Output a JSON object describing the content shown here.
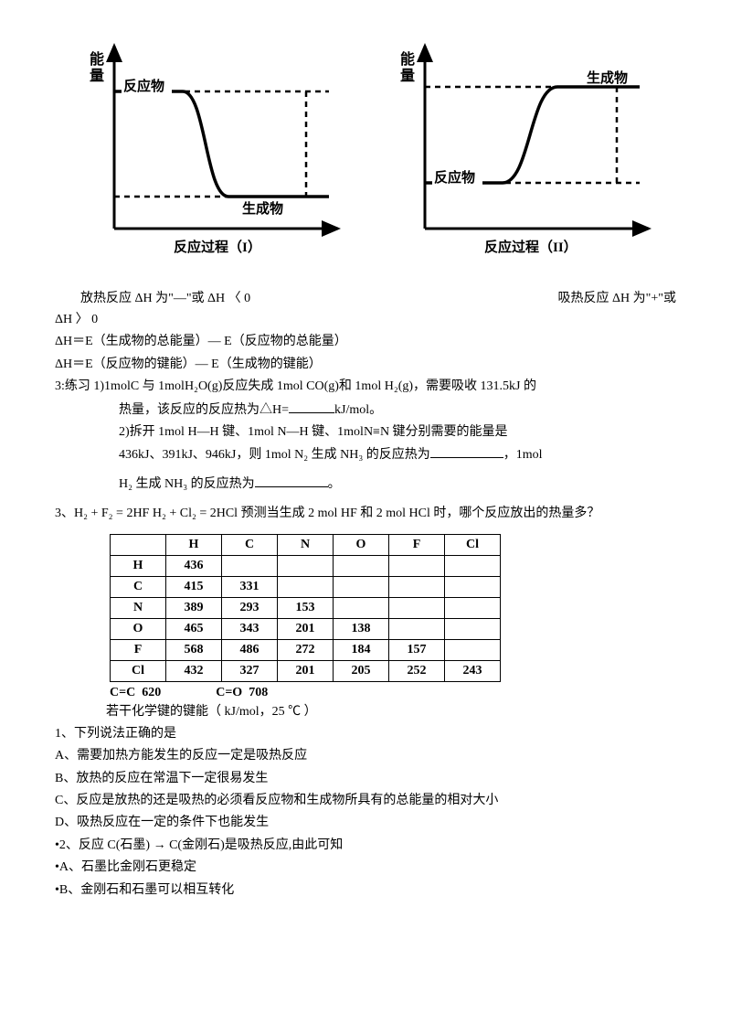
{
  "diagrams": {
    "ylabel": "能\n量",
    "xlabel1": "反应过程（I）",
    "xlabel2": "反应过程（II）",
    "reactant": "反应物",
    "product": "生成物",
    "stroke": "#000000",
    "strokeWidth": 2
  },
  "text": {
    "exo": "放热反应 ΔH 为\"—\"或 ΔH 〈 0",
    "endo": "吸热反应 ΔH 为\"+\"或",
    "endo2": "ΔH  〉 0",
    "eq1": "ΔH＝E（生成物的总能量）— E（反应物的总能量）",
    "eq2": "ΔH＝E（反应物的键能）— E（生成物的键能）",
    "ex3a": "3:练习 1)1molC 与 1molH₂O(g)反应失成 1mol CO(g)和 1mol H₂(g)，需要吸收 131.5kJ 的",
    "ex3b": "热量，该反应的反应热为△H=",
    "ex3b2": "kJ/mol。",
    "ex3c": "2)拆开   1mol   H—H 键、1mol   N—H 键、1molN≡N 键分别需要的能量是",
    "ex3d": "436kJ、391kJ、946kJ，则 1mol N₂ 生成 NH₃ 的反应热为",
    "ex3d2": "，1mol",
    "ex3e": "H₂ 生成 NH₃ 的反应热为",
    "ex3e2": "。",
    "q3": "3、H₂ + F₂ = 2HF  H₂ + Cl₂ = 2HCl 预测当生成 2 mol HF 和 2 mol HCl 时，哪个反应放出的热量多？",
    "tablecap": "若干化学键的键能（ kJ/mol，25  ℃ ）",
    "q1": "1、下列说法正确的是",
    "q1a": "A、需要加热方能发生的反应一定是吸热反应",
    "q1b": "B、放热的反应在常温下一定很易发生",
    "q1c": "C、反应是放热的还是吸热的必须看反应物和生成物所具有的总能量的相对大小",
    "q1d": "D、吸热反应在一定的条件下也能发生",
    "q2": "•2、反应 C(石墨) → C(金刚石)是吸热反应,由此可知",
    "q2a": "•A、石墨比金刚石更稳定",
    "q2b": "•B、金刚石和石墨可以相互转化"
  },
  "table": {
    "headers": [
      "",
      "H",
      "C",
      "N",
      "O",
      "F",
      "Cl"
    ],
    "rows": [
      [
        "H",
        "436",
        "",
        "",
        "",
        "",
        ""
      ],
      [
        "C",
        "415",
        "331",
        "",
        "",
        "",
        ""
      ],
      [
        "N",
        "389",
        "293",
        "153",
        "",
        "",
        ""
      ],
      [
        "O",
        "465",
        "343",
        "201",
        "138",
        "",
        ""
      ],
      [
        "F",
        "568",
        "486",
        "272",
        "184",
        "157",
        ""
      ],
      [
        "Cl",
        "432",
        "327",
        "201",
        "205",
        "252",
        "243"
      ]
    ],
    "footer": {
      "cc": "C=C",
      "ccv": "620",
      "co": "C=O",
      "cov": "708"
    }
  }
}
